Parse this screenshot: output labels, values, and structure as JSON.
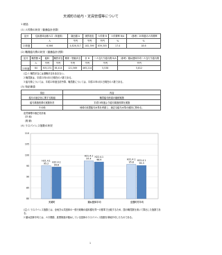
{
  "title": "天城町の給与・定員管理等について",
  "section": "1 総括",
  "blocks": [
    {
      "heading": "(1) 人件費の状況（普通会計決算）",
      "table": {
        "header": [
          "区分",
          "住民基本台帳人口（年度末）",
          "歳出額 A",
          "実質収支",
          "人件費 B",
          "人件費率 B/A",
          "（参考）20年度の人件費率"
        ],
        "rows": [
          [
            "",
            "人",
            "千円",
            "千円",
            "千円",
            "%",
            "%"
          ],
          [
            "21年度",
            "6,566",
            "4,826,517",
            "182,399",
            "839,305",
            "17.4",
            "18.6"
          ]
        ]
      },
      "notes": []
    },
    {
      "heading": "(2) 職員給与費の状況（普通会計決算）",
      "table": {
        "header": [
          "区分",
          "職員数 A",
          "給料",
          "職員手当",
          "期末・勤勉手当",
          "計 B",
          "一人当たり給与費 B/A",
          "（参考）類似団体平均一人当たり給与費"
        ],
        "rows": [
          [
            "",
            "人",
            "千円",
            "千円",
            "千円",
            "千円",
            "千円",
            "千円"
          ],
          [
            "22年度",
            "84",
            "305,231",
            "38,414",
            "121,569",
            "465,214",
            "5,538",
            "5,812"
          ]
        ]
      },
      "notes": [
        "(注) 1 職員手当には退職手当を含まない。",
        "2 職員数は、平成22年4月1日現在の人数である。",
        "3 給与費については、平成22年度当初予算、職員数については、平成22年4月1日現在の人数である。"
      ]
    },
    {
      "heading": "(3) 特記事項",
      "table": {
        "header": [
          "項目",
          "内容"
        ],
        "rows": [
          [
            "給与の適正化に関する取組",
            "職員給与削減の継続実施"
          ],
          [
            "給与構造改革の実施状況",
            "平成18年度より給与構造改革を実施"
          ],
          [
            "その他",
            "地域の民間給与水準を考慮し、適正な給与水準の維持に努める。"
          ]
        ]
      },
      "notes": [
        "定員管理の適正化計画",
        "（計 画）",
        "（実 績）"
      ]
    }
  ],
  "chart_heading": "(4) ラスパイレス指数の状況",
  "chart": {
    "type": "bar",
    "categories": [
      "天城町",
      "類似団体平均",
      "全国町村平均"
    ],
    "series": [
      {
        "name": "H21.4.1",
        "color": "#c6d9f1",
        "values": [
          95.2,
          97.4,
          95.8
        ]
      },
      {
        "name": "H22.4.1",
        "color": "#4f81bd",
        "values": [
          94.6,
          96.9,
          95.3
        ]
      }
    ],
    "ylim": [
      80,
      110
    ],
    "yticks": [
      80,
      85,
      90,
      95,
      100,
      105,
      110
    ]
  },
  "chart_notes": [
    "(注) 1 ラスパイレス指数とは、全地方公共団体の一般行政職の給料額を同一の基準で比較するため、国の職員数を用いて算出した指数である。",
    "2 類似団体平均とは、人口規模、産業構造が類似している団体のラスパイレス指数を単純平均したものである。"
  ],
  "page_number": "1"
}
